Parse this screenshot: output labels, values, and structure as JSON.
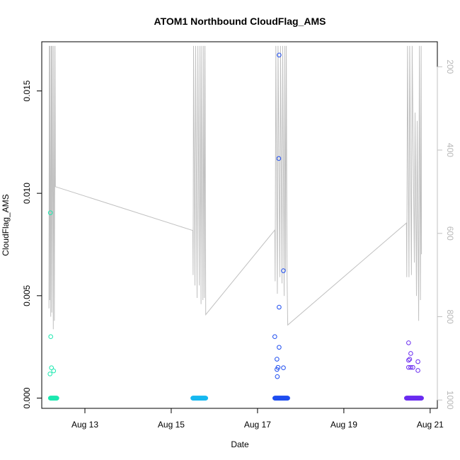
{
  "chart_data": {
    "type": "scatter",
    "title": "ATOM1 Northbound CloudFlag_AMS",
    "xlabel": "Date",
    "ylabel": "CloudFlag_AMS",
    "x_range": [
      "2018-08-12T00:00",
      "2018-08-21T04:00"
    ],
    "x_ticks": [
      {
        "date": "2018-08-13",
        "label": "Aug 13"
      },
      {
        "date": "2018-08-15",
        "label": "Aug 15"
      },
      {
        "date": "2018-08-17",
        "label": "Aug 17"
      },
      {
        "date": "2018-08-19",
        "label": "Aug 19"
      },
      {
        "date": "2018-08-21",
        "label": "Aug 21"
      }
    ],
    "ylim": [
      -0.0005,
      0.0174
    ],
    "y_ticks": [
      {
        "value": 0.0,
        "label": "0.000"
      },
      {
        "value": 0.005,
        "label": "0.005"
      },
      {
        "value": 0.01,
        "label": "0.010"
      },
      {
        "value": 0.015,
        "label": "0.015"
      }
    ],
    "right_axis": {
      "description": "altitude track (gray line), inverted",
      "ylim": [
        1020,
        140
      ],
      "ticks": [
        {
          "value": 200,
          "label": "200"
        },
        {
          "value": 400,
          "label": "400"
        },
        {
          "value": 600,
          "label": "600"
        },
        {
          "value": 800,
          "label": "800"
        },
        {
          "value": 1000,
          "label": "1000"
        }
      ],
      "color": "#c0c0c0"
    },
    "grid": false,
    "legend": "none",
    "flights": [
      {
        "color": "#1de8b0",
        "zero_start": "2018-08-12T04:48",
        "zero_end": "2018-08-12T08:24",
        "points": [
          [
            "2018-08-12T04:48",
            0.00905
          ],
          [
            "2018-08-12T05:00",
            0.003
          ],
          [
            "2018-08-12T04:36",
            0.00118
          ],
          [
            "2018-08-12T05:24",
            0.00148
          ],
          [
            "2018-08-12T06:36",
            0.00133
          ]
        ]
      },
      {
        "color": "#17b8f0",
        "zero_start": "2018-08-15T12:00",
        "zero_end": "2018-08-15T19:12",
        "points": []
      },
      {
        "color": "#1f4ef0",
        "zero_start": "2018-08-17T09:36",
        "zero_end": "2018-08-17T16:48",
        "points": [
          [
            "2018-08-17T12:00",
            0.01675
          ],
          [
            "2018-08-17T11:48",
            0.0117
          ],
          [
            "2018-08-17T14:24",
            0.00622
          ],
          [
            "2018-08-17T12:00",
            0.00444
          ],
          [
            "2018-08-17T09:36",
            0.003
          ],
          [
            "2018-08-17T12:00",
            0.00248
          ],
          [
            "2018-08-17T10:48",
            0.0019
          ],
          [
            "2018-08-17T11:24",
            0.0015
          ],
          [
            "2018-08-17T10:48",
            0.0014
          ],
          [
            "2018-08-17T14:24",
            0.00148
          ],
          [
            "2018-08-17T11:00",
            0.00105
          ]
        ]
      },
      {
        "color": "#6a2cf0",
        "zero_start": "2018-08-20T10:48",
        "zero_end": "2018-08-20T19:12",
        "points": [
          [
            "2018-08-20T12:00",
            0.0027
          ],
          [
            "2018-08-20T13:12",
            0.00218
          ],
          [
            "2018-08-20T12:36",
            0.0019
          ],
          [
            "2018-08-20T12:00",
            0.00185
          ],
          [
            "2018-08-20T17:12",
            0.00178
          ],
          [
            "2018-08-20T12:00",
            0.0015
          ],
          [
            "2018-08-20T14:24",
            0.0015
          ],
          [
            "2018-08-20T13:12",
            0.0015
          ],
          [
            "2018-08-20T17:12",
            0.00135
          ]
        ]
      }
    ],
    "altitude_track": [
      [
        "2018-08-12T04:00",
        780
      ],
      [
        "2018-08-12T04:12",
        150
      ],
      [
        "2018-08-12T04:24",
        760
      ],
      [
        "2018-08-12T04:36",
        150
      ],
      [
        "2018-08-12T05:00",
        800
      ],
      [
        "2018-08-12T05:24",
        150
      ],
      [
        "2018-08-12T05:36",
        790
      ],
      [
        "2018-08-12T05:48",
        150
      ],
      [
        "2018-08-12T06:24",
        830
      ],
      [
        "2018-08-12T06:36",
        150
      ],
      [
        "2018-08-12T07:00",
        810
      ],
      [
        "2018-08-12T07:24",
        150
      ],
      [
        "2018-08-12T07:36",
        488
      ],
      [
        "2018-08-15T12:00",
        593
      ],
      [
        "2018-08-15T12:12",
        700
      ],
      [
        "2018-08-15T12:24",
        150
      ],
      [
        "2018-08-15T13:12",
        725
      ],
      [
        "2018-08-15T13:36",
        150
      ],
      [
        "2018-08-15T14:24",
        755
      ],
      [
        "2018-08-15T14:48",
        150
      ],
      [
        "2018-08-15T15:36",
        725
      ],
      [
        "2018-08-15T16:00",
        150
      ],
      [
        "2018-08-15T16:36",
        770
      ],
      [
        "2018-08-15T17:00",
        150
      ],
      [
        "2018-08-15T17:36",
        760
      ],
      [
        "2018-08-15T18:00",
        150
      ],
      [
        "2018-08-15T18:24",
        755
      ],
      [
        "2018-08-15T18:48",
        150
      ],
      [
        "2018-08-15T19:12",
        795
      ],
      [
        "2018-08-17T09:36",
        592
      ],
      [
        "2018-08-17T09:48",
        715
      ],
      [
        "2018-08-17T10:12",
        150
      ],
      [
        "2018-08-17T11:00",
        745
      ],
      [
        "2018-08-17T11:24",
        150
      ],
      [
        "2018-08-17T12:24",
        705
      ],
      [
        "2018-08-17T12:48",
        150
      ],
      [
        "2018-08-17T13:36",
        720
      ],
      [
        "2018-08-17T14:00",
        150
      ],
      [
        "2018-08-17T14:48",
        750
      ],
      [
        "2018-08-17T15:12",
        150
      ],
      [
        "2018-08-17T15:36",
        690
      ],
      [
        "2018-08-17T16:00",
        150
      ],
      [
        "2018-08-17T16:24",
        700
      ],
      [
        "2018-08-17T16:48",
        820
      ],
      [
        "2018-08-20T10:48",
        575
      ],
      [
        "2018-08-20T11:00",
        705
      ],
      [
        "2018-08-20T11:24",
        150
      ],
      [
        "2018-08-20T12:12",
        705
      ],
      [
        "2018-08-20T12:36",
        150
      ],
      [
        "2018-08-20T13:36",
        700
      ],
      [
        "2018-08-20T14:00",
        150
      ],
      [
        "2018-08-20T15:12",
        670
      ],
      [
        "2018-08-20T15:36",
        310
      ],
      [
        "2018-08-20T16:24",
        750
      ],
      [
        "2018-08-20T16:48",
        330
      ],
      [
        "2018-08-20T17:36",
        810
      ],
      [
        "2018-08-20T18:00",
        150
      ],
      [
        "2018-08-20T18:36",
        760
      ],
      [
        "2018-08-20T19:00",
        150
      ],
      [
        "2018-08-20T19:12",
        650
      ]
    ]
  }
}
